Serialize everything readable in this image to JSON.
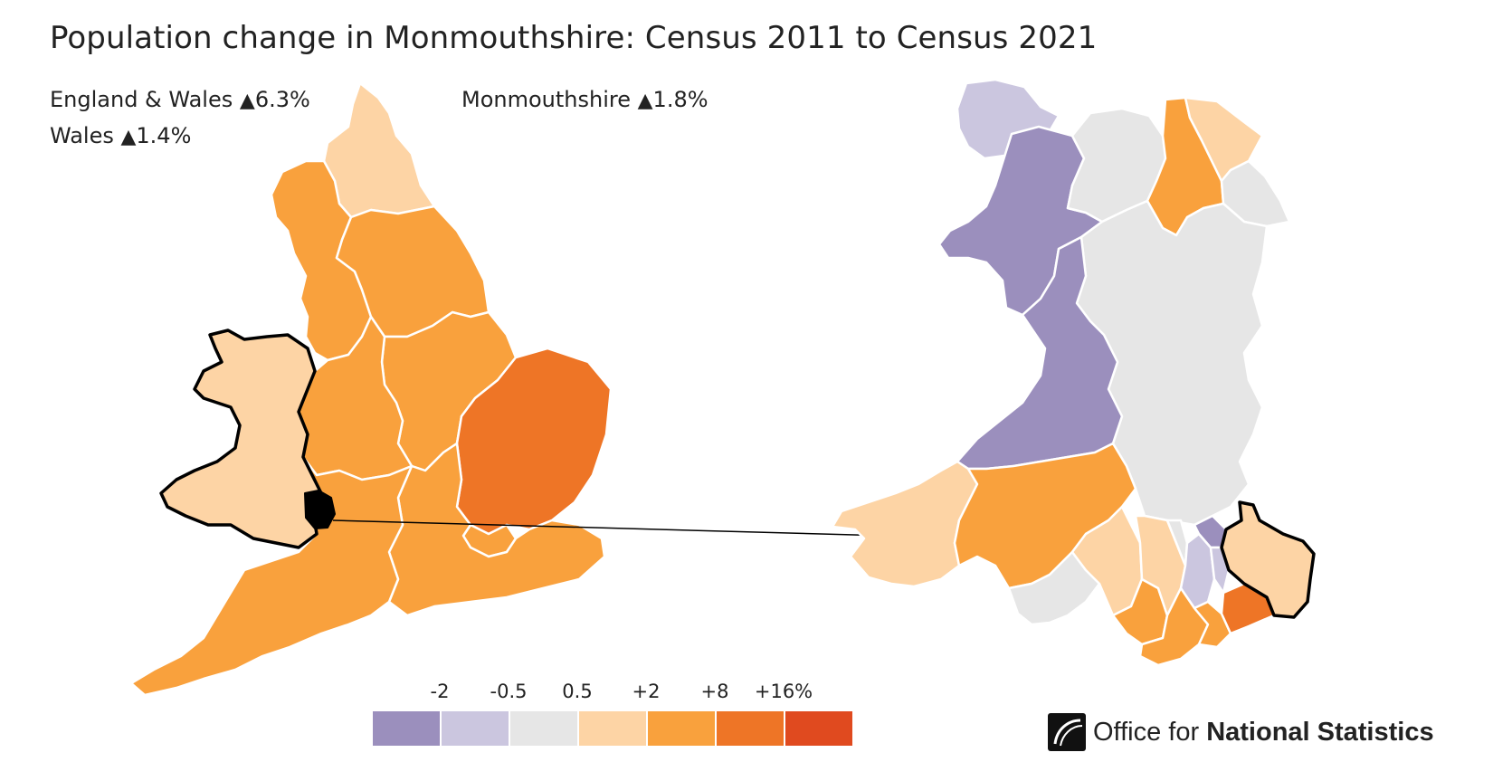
{
  "title": "Population change in Monmouthshire: Census 2011 to Census 2021",
  "stats": {
    "england_wales": {
      "label": "England & Wales",
      "arrow": "▲",
      "value": "6.3%"
    },
    "wales": {
      "label": "Wales",
      "arrow": "▲",
      "value": "1.4%"
    },
    "area": {
      "label": "Monmouthshire",
      "arrow": "▲",
      "value": "1.8%"
    }
  },
  "legend": {
    "labels": [
      "-2",
      "-0.5",
      "0.5",
      "+2",
      "+8",
      "+16%"
    ],
    "colors": [
      "#9b8fbd",
      "#cbc6df",
      "#e6e6e6",
      "#fdd4a5",
      "#f9a13d",
      "#ee7526",
      "#e04a1f"
    ]
  },
  "colors": {
    "england_regions": "#f9a13d",
    "east_of_england": "#ee7526",
    "wales": "#fdd4a5",
    "north_east": "#fdd4a5",
    "highlight": "#000000",
    "purple": "#9b8fbd",
    "light_purple": "#cbc6df",
    "grey": "#e6e6e6",
    "peach": "#fdd4a5",
    "orange": "#f9a13d",
    "dark_orange": "#ee7526"
  },
  "branding": {
    "prefix": "Office for ",
    "bold": "National Statistics"
  }
}
